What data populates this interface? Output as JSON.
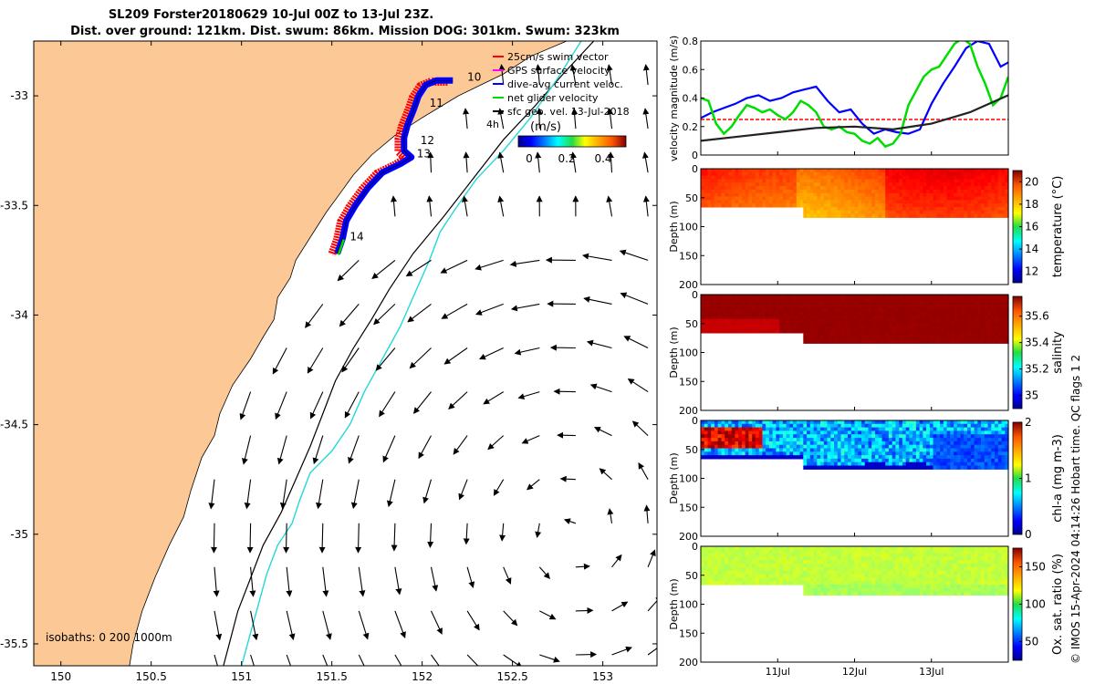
{
  "title": {
    "line1": "SL209 Forster20180629 10-Jul 00Z to 13-Jul 23Z.",
    "line2": "Dist. over ground: 121km. Dist. swum: 86km. Mission DOG: 301km. Swum: 323km"
  },
  "colors": {
    "land": "#fcc996",
    "swim_vector": "#ff0000",
    "gps_velocity": "#ff00ff",
    "dive_avg": "#0000ff",
    "net_glider": "#00dd00",
    "sfc_geo": "#000000",
    "isobath_200": "#000000",
    "isobath_1000": "#22d8d8",
    "threshold": "#ff0000"
  },
  "chart_data": [
    {
      "id": "map",
      "type": "scatter",
      "xlim": [
        149.85,
        153.3
      ],
      "ylim": [
        -35.6,
        -32.75
      ],
      "x_ticks": [
        "150",
        "150.5",
        "151",
        "151.5",
        "152",
        "152.5",
        "153"
      ],
      "x_tick_values": [
        150,
        150.5,
        151,
        151.5,
        152,
        152.5,
        153
      ],
      "y_ticks": [
        "-33",
        "-33.5",
        "-34",
        "-34.5",
        "-35",
        "-35.5"
      ],
      "y_tick_values": [
        -33,
        -33.5,
        -34,
        -34.5,
        -35,
        -35.5
      ],
      "legend": [
        "25cm/s swim vector",
        "GPS surface velocity",
        "dive-avg current veloc.",
        "net glider velocity",
        "sfc geo. vel. 13-Jul-2018"
      ],
      "colorbar": {
        "label": "(m/s)",
        "ticks": [
          "0",
          "0.2",
          "0.4"
        ],
        "range": [
          0,
          0.5
        ]
      },
      "isobaths_label": "isobaths: 0   200  1000m",
      "time_marker": "4h",
      "track": [
        [
          152.17,
          -32.93
        ],
        [
          152.08,
          -32.93
        ],
        [
          152.02,
          -32.95
        ],
        [
          151.98,
          -33.0
        ],
        [
          151.95,
          -33.07
        ],
        [
          151.92,
          -33.13
        ],
        [
          151.9,
          -33.19
        ],
        [
          151.9,
          -33.25
        ],
        [
          151.94,
          -33.28
        ],
        [
          151.88,
          -33.31
        ],
        [
          151.78,
          -33.35
        ],
        [
          151.7,
          -33.42
        ],
        [
          151.63,
          -33.5
        ],
        [
          151.58,
          -33.57
        ],
        [
          151.56,
          -33.65
        ],
        [
          151.53,
          -33.72
        ]
      ],
      "day_labels": [
        {
          "text": "10",
          "lon": 152.25,
          "lat": -32.93
        },
        {
          "text": "11",
          "lon": 152.04,
          "lat": -33.05
        },
        {
          "text": "12",
          "lon": 151.99,
          "lat": -33.22
        },
        {
          "text": "13",
          "lon": 151.97,
          "lat": -33.28
        },
        {
          "text": "14",
          "lon": 151.6,
          "lat": -33.66
        }
      ],
      "coast": [
        [
          152.8,
          -32.75
        ],
        [
          152.6,
          -32.82
        ],
        [
          152.45,
          -32.9
        ],
        [
          152.3,
          -32.96
        ],
        [
          152.2,
          -33.0
        ],
        [
          152.1,
          -33.05
        ],
        [
          152.0,
          -33.1
        ],
        [
          151.85,
          -33.18
        ],
        [
          151.72,
          -33.27
        ],
        [
          151.62,
          -33.36
        ],
        [
          151.55,
          -33.44
        ],
        [
          151.47,
          -33.53
        ],
        [
          151.4,
          -33.62
        ],
        [
          151.3,
          -33.75
        ],
        [
          151.27,
          -33.83
        ],
        [
          151.2,
          -33.92
        ],
        [
          151.18,
          -34.02
        ],
        [
          151.12,
          -34.1
        ],
        [
          151.05,
          -34.2
        ],
        [
          150.95,
          -34.32
        ],
        [
          150.88,
          -34.45
        ],
        [
          150.85,
          -34.55
        ],
        [
          150.78,
          -34.65
        ],
        [
          150.72,
          -34.8
        ],
        [
          150.68,
          -34.92
        ],
        [
          150.6,
          -35.05
        ],
        [
          150.52,
          -35.2
        ],
        [
          150.45,
          -35.35
        ],
        [
          150.4,
          -35.5
        ],
        [
          150.38,
          -35.6
        ]
      ],
      "isobath_200": [
        [
          152.95,
          -32.75
        ],
        [
          152.78,
          -32.9
        ],
        [
          152.62,
          -33.05
        ],
        [
          152.45,
          -33.2
        ],
        [
          152.28,
          -33.38
        ],
        [
          152.12,
          -33.55
        ],
        [
          151.95,
          -33.72
        ],
        [
          151.82,
          -33.88
        ],
        [
          151.72,
          -34.02
        ],
        [
          151.62,
          -34.15
        ],
        [
          151.52,
          -34.3
        ],
        [
          151.45,
          -34.45
        ],
        [
          151.38,
          -34.6
        ],
        [
          151.3,
          -34.75
        ],
        [
          151.22,
          -34.9
        ],
        [
          151.12,
          -35.05
        ],
        [
          151.05,
          -35.2
        ],
        [
          150.98,
          -35.35
        ],
        [
          150.9,
          -35.6
        ]
      ],
      "isobath_1000": [
        [
          152.88,
          -32.75
        ],
        [
          152.75,
          -32.92
        ],
        [
          152.6,
          -33.1
        ],
        [
          152.45,
          -33.25
        ],
        [
          152.3,
          -33.38
        ],
        [
          152.18,
          -33.52
        ],
        [
          152.1,
          -33.62
        ],
        [
          152.04,
          -33.75
        ],
        [
          151.96,
          -33.9
        ],
        [
          151.88,
          -34.05
        ],
        [
          151.78,
          -34.2
        ],
        [
          151.68,
          -34.35
        ],
        [
          151.6,
          -34.5
        ],
        [
          151.5,
          -34.62
        ],
        [
          151.38,
          -34.72
        ],
        [
          151.32,
          -34.85
        ],
        [
          151.28,
          -34.95
        ],
        [
          151.2,
          -35.05
        ],
        [
          151.14,
          -35.18
        ],
        [
          151.1,
          -35.3
        ],
        [
          151.05,
          -35.45
        ],
        [
          151.0,
          -35.6
        ]
      ]
    },
    {
      "id": "velocity",
      "type": "line",
      "ylabel": "velocity magnitude (m/s)",
      "ylim": [
        0,
        0.8
      ],
      "y_ticks": [
        "0",
        "0.2",
        "0.4",
        "0.6",
        "0.8"
      ],
      "y_tick_values": [
        0,
        0.2,
        0.4,
        0.6,
        0.8
      ],
      "xlim": [
        10.0,
        14.0
      ],
      "threshold": 0.25,
      "series": [
        {
          "color": "blue",
          "x": [
            10.0,
            10.15,
            10.3,
            10.45,
            10.6,
            10.75,
            10.9,
            11.05,
            11.2,
            11.35,
            11.5,
            11.65,
            11.8,
            11.95,
            12.1,
            12.25,
            12.4,
            12.55,
            12.7,
            12.85,
            13.0,
            13.15,
            13.3,
            13.45,
            13.6,
            13.75,
            13.9,
            14.0
          ],
          "values": [
            0.26,
            0.3,
            0.33,
            0.36,
            0.4,
            0.42,
            0.38,
            0.4,
            0.44,
            0.46,
            0.48,
            0.38,
            0.3,
            0.32,
            0.22,
            0.15,
            0.18,
            0.16,
            0.15,
            0.18,
            0.36,
            0.5,
            0.62,
            0.75,
            0.8,
            0.78,
            0.62,
            0.65
          ]
        },
        {
          "color": "green",
          "x": [
            10.0,
            10.1,
            10.2,
            10.3,
            10.4,
            10.5,
            10.6,
            10.7,
            10.8,
            10.9,
            11.0,
            11.1,
            11.2,
            11.3,
            11.4,
            11.5,
            11.6,
            11.7,
            11.8,
            11.9,
            12.0,
            12.1,
            12.2,
            12.3,
            12.4,
            12.5,
            12.6,
            12.7,
            12.8,
            12.9,
            13.0,
            13.1,
            13.2,
            13.3,
            13.4,
            13.5,
            13.6,
            13.7,
            13.8,
            13.9,
            14.0
          ],
          "values": [
            0.4,
            0.38,
            0.22,
            0.15,
            0.2,
            0.28,
            0.35,
            0.33,
            0.3,
            0.32,
            0.28,
            0.25,
            0.3,
            0.38,
            0.35,
            0.3,
            0.2,
            0.18,
            0.2,
            0.16,
            0.15,
            0.1,
            0.08,
            0.12,
            0.06,
            0.08,
            0.15,
            0.35,
            0.45,
            0.55,
            0.6,
            0.62,
            0.7,
            0.78,
            0.82,
            0.78,
            0.62,
            0.5,
            0.35,
            0.4,
            0.55
          ]
        },
        {
          "color": "black",
          "x": [
            10.0,
            10.5,
            11.0,
            11.5,
            12.0,
            12.5,
            13.0,
            13.5,
            14.0
          ],
          "values": [
            0.1,
            0.13,
            0.16,
            0.19,
            0.2,
            0.18,
            0.22,
            0.3,
            0.42
          ]
        }
      ]
    },
    {
      "id": "temperature",
      "type": "heatmap",
      "ylabel": "Depth (m)",
      "colorbar_label": "temperature (°C)",
      "y_ticks": [
        "0",
        "50",
        "100",
        "150",
        "200"
      ],
      "cb_ticks": [
        "20",
        "18",
        "16",
        "14",
        "12"
      ],
      "cb_range": [
        11,
        21
      ],
      "typical_value": 19.3,
      "max_depth": [
        65,
        65,
        65,
        65,
        65,
        65,
        65,
        65,
        65,
        65,
        82,
        83,
        84,
        82,
        82,
        83,
        81,
        80,
        82,
        82,
        81,
        80,
        82,
        82,
        82,
        82,
        81,
        82,
        82,
        81
      ]
    },
    {
      "id": "salinity",
      "type": "heatmap",
      "ylabel": "Depth (m)",
      "colorbar_label": "salinity",
      "y_ticks": [
        "0",
        "50",
        "100",
        "150",
        "200"
      ],
      "cb_ticks": [
        "35.6",
        "35.4",
        "35.2",
        "35"
      ],
      "cb_range": [
        34.9,
        35.75
      ],
      "typical_value": 35.72
    },
    {
      "id": "chla",
      "type": "heatmap",
      "ylabel": "Depth (m)",
      "colorbar_label": "chl-a (mg m-3)",
      "y_ticks": [
        "0",
        "50",
        "100",
        "150",
        "200"
      ],
      "cb_ticks": [
        "2",
        "1",
        "0"
      ],
      "cb_range": [
        0,
        2
      ],
      "typical_value": 0.6
    },
    {
      "id": "oxygen",
      "type": "heatmap",
      "ylabel": "Depth (m)",
      "colorbar_label": "Ox. sat. ratio (%)",
      "y_ticks": [
        "0",
        "50",
        "100",
        "150",
        "200"
      ],
      "cb_ticks": [
        "150",
        "100",
        "50"
      ],
      "cb_range": [
        25,
        175
      ],
      "typical_value": 105,
      "x_ticks": [
        "11Jul",
        "12Jul",
        "13Jul"
      ],
      "x_tick_values": [
        11,
        12,
        13
      ]
    }
  ],
  "footer": "© IMOS 15-Apr-2024 04:14:26 Hobart time. QC flags 1  2"
}
